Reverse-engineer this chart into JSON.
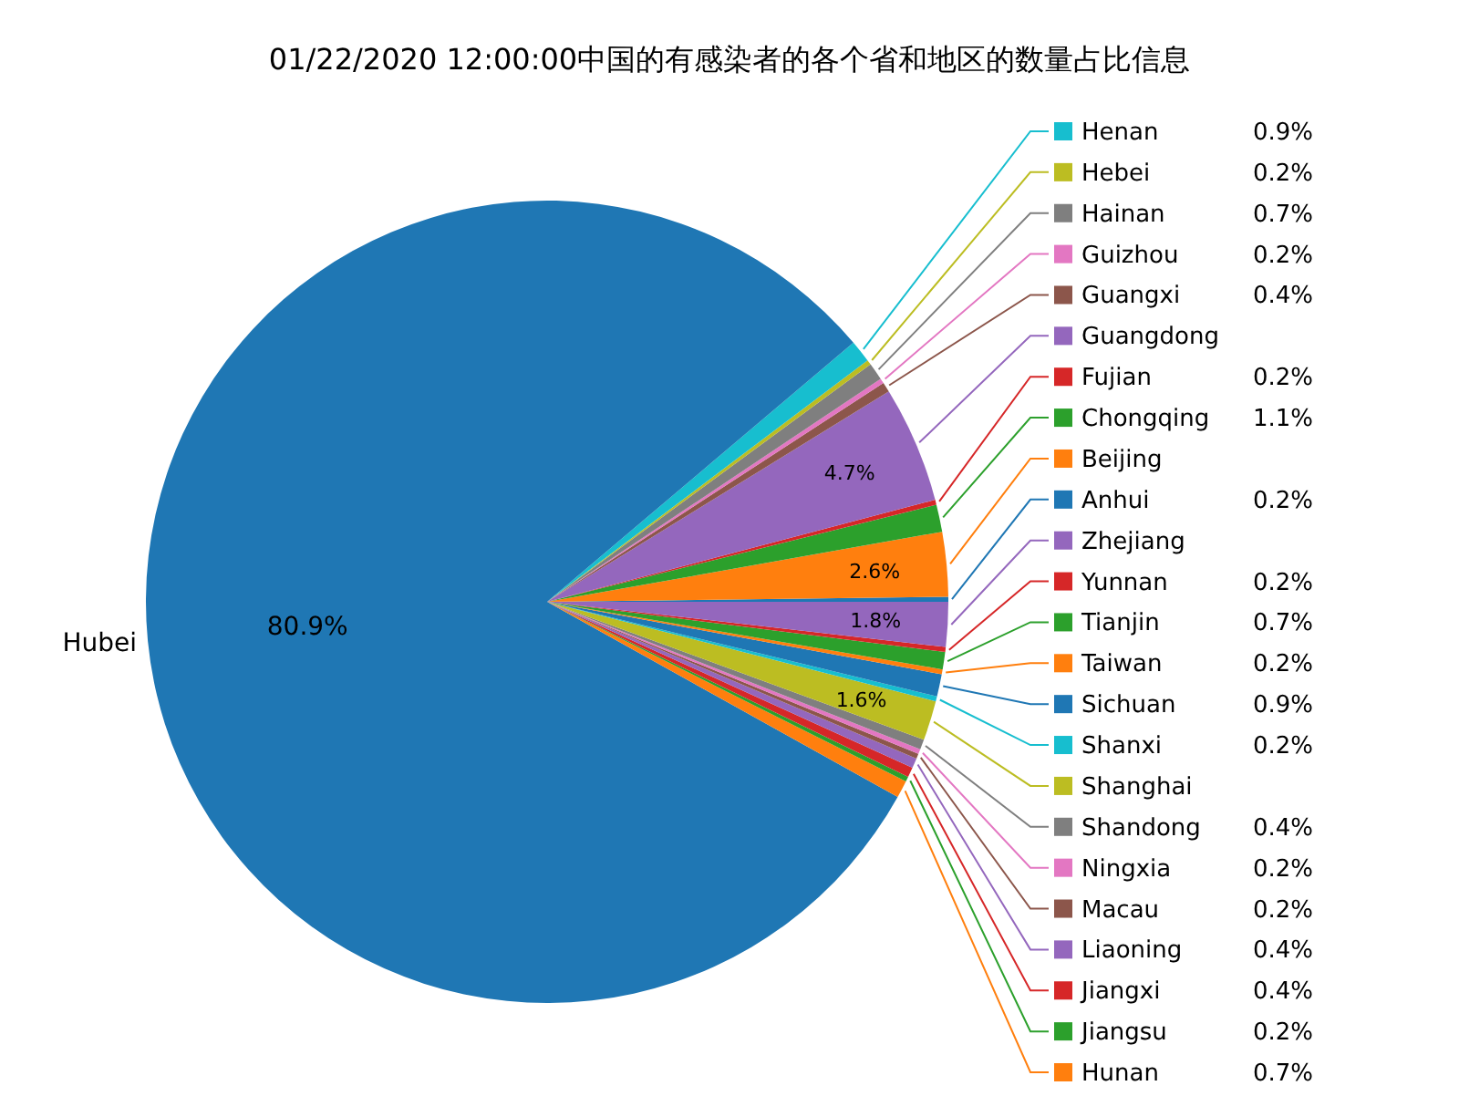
{
  "chart_data": {
    "type": "pie",
    "legend": "right",
    "title": "01/22/2020 12:00:00中国的有感染者的各个省和地区的数量占比信息",
    "categories": [
      "Anhui",
      "Beijing",
      "Chongqing",
      "Fujian",
      "Guangdong",
      "Guangxi",
      "Guizhou",
      "Hainan",
      "Hebei",
      "Henan",
      "Hubei",
      "Hunan",
      "Jiangsu",
      "Jiangxi",
      "Liaoning",
      "Macau",
      "Ningxia",
      "Shandong",
      "Shanghai",
      "Shanxi",
      "Sichuan",
      "Taiwan",
      "Tianjin",
      "Yunnan",
      "Zhejiang"
    ],
    "values": [
      0.2,
      2.6,
      1.1,
      0.2,
      4.7,
      0.4,
      0.2,
      0.7,
      0.2,
      0.9,
      80.9,
      0.7,
      0.2,
      0.4,
      0.4,
      0.2,
      0.2,
      0.4,
      1.6,
      0.2,
      0.9,
      0.2,
      0.7,
      0.2,
      1.8
    ],
    "colors": [
      "#1f77b4",
      "#ff7f0e",
      "#2ca02c",
      "#d62728",
      "#9467bd",
      "#8c564b",
      "#e377c2",
      "#7f7f7f",
      "#bcbd22",
      "#17becf",
      "#1f77b4",
      "#ff7f0e",
      "#2ca02c",
      "#d62728",
      "#9467bd",
      "#8c564b",
      "#e377c2",
      "#7f7f7f",
      "#bcbd22",
      "#17becf",
      "#1f77b4",
      "#ff7f0e",
      "#2ca02c",
      "#d62728",
      "#9467bd"
    ],
    "value_labels": [
      "0.2%",
      "2.6%",
      "1.1%",
      "0.2%",
      "4.7%",
      "0.4%",
      "0.2%",
      "0.7%",
      "0.2%",
      "0.9%",
      "80.9%",
      "0.7%",
      "0.2%",
      "0.4%",
      "0.4%",
      "0.2%",
      "0.2%",
      "0.4%",
      "1.6%",
      "0.2%",
      "0.9%",
      "0.2%",
      "0.7%",
      "0.2%",
      "1.8%"
    ]
  }
}
